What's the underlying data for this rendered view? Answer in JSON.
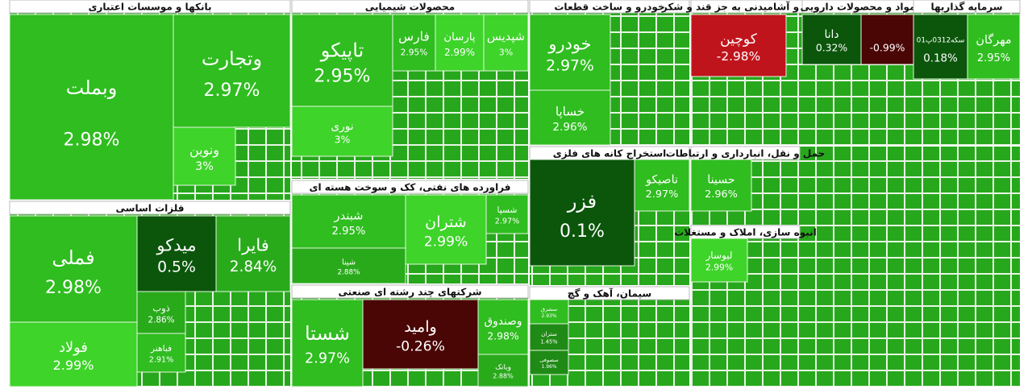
{
  "chart_data": {
    "type": "treemap",
    "groups": [
      {
        "name": "بانکها و موسسات اعتباری",
        "tiles": [
          "وبملت",
          "وتجارت",
          "ونوین"
        ],
        "values": [
          2.98,
          2.97,
          3
        ],
        "value_labels": [
          "2.98%",
          "2.97%",
          "3%"
        ]
      },
      {
        "name": "فلزات اساسی",
        "tiles": [
          "فملی",
          "فولاد",
          "میدکو",
          "فایرا",
          "ذوب",
          "فباهنر"
        ],
        "values": [
          2.98,
          2.99,
          0.5,
          2.84,
          2.86,
          2.91
        ],
        "value_labels": [
          "2.98%",
          "2.99%",
          "0.5%",
          "2.84%",
          "2.86%",
          "2.91%"
        ]
      },
      {
        "name": "محصولات شیمیایی",
        "tiles": [
          "تاپیکو",
          "نوری",
          "فارس",
          "پارسان",
          "شپدیس"
        ],
        "values": [
          2.95,
          3,
          2.95,
          2.99,
          3
        ],
        "value_labels": [
          "2.95%",
          "3%",
          "2.95%",
          "2.99%",
          "3%"
        ]
      },
      {
        "name": "فراورده های نفتی، کک و سوخت هسته ای",
        "tiles": [
          "شبندر",
          "شپنا",
          "شتران",
          "شسپا"
        ],
        "values": [
          2.95,
          2.88,
          2.99,
          2.97
        ],
        "value_labels": [
          "2.95%",
          "2.88%",
          "2.99%",
          "2.97%"
        ]
      },
      {
        "name": "شرکتهای چند رشته ای صنعتی",
        "tiles": [
          "شستا",
          "وامید",
          "وصندوق",
          "وبانک"
        ],
        "values": [
          2.97,
          -0.26,
          2.98,
          2.88
        ],
        "value_labels": [
          "2.97%",
          "-0.26%",
          "2.98%",
          "2.88%"
        ]
      },
      {
        "name": "خودرو و ساخت قطعات",
        "tiles": [
          "خودرو",
          "خساپا"
        ],
        "values": [
          2.97,
          2.96
        ],
        "value_labels": [
          "2.97%",
          "2.96%"
        ]
      },
      {
        "name": "استخراج کانه های فلزی",
        "tiles": [
          "فزر",
          "تاصیکو"
        ],
        "values": [
          0.1,
          2.97
        ],
        "value_labels": [
          "0.1%",
          "2.97%"
        ]
      },
      {
        "name": "سیمان، آهک و گچ",
        "tiles": [
          "سشرق",
          "ستران",
          "سصوفی"
        ],
        "values": [
          2.93,
          1.45,
          1.96
        ],
        "value_labels": [
          "2.93%",
          "1.45%",
          "1.96%"
        ]
      },
      {
        "name": "غذایی و آشامیدنی به جز قند و شکر",
        "tiles": [
          "کوچین"
        ],
        "values": [
          -2.98
        ],
        "value_labels": [
          "-2.98%"
        ]
      },
      {
        "name": "مواد و محصولات دارویی",
        "tiles": [
          "دانا",
          null
        ],
        "values": [
          0.32,
          -0.99
        ],
        "value_labels": [
          "0.32%",
          "-0.99%"
        ]
      },
      {
        "name": "سرمایه گذاریها",
        "tiles": [
          "سکه0312پ01",
          "مهرگان"
        ],
        "values": [
          0.18,
          2.95
        ],
        "value_labels": [
          "0.18%",
          "2.95%"
        ]
      },
      {
        "name": "حمل و نقل، انبارداری و ارتباطات",
        "tiles": [
          "حسینا"
        ],
        "values": [
          2.96
        ],
        "value_labels": [
          "2.96%"
        ]
      },
      {
        "name": "انبوه سازی، املاک و مستغلات",
        "tiles": [
          "لیوسار"
        ],
        "values": [
          2.99
        ],
        "value_labels": [
          "2.99%"
        ]
      }
    ]
  }
}
